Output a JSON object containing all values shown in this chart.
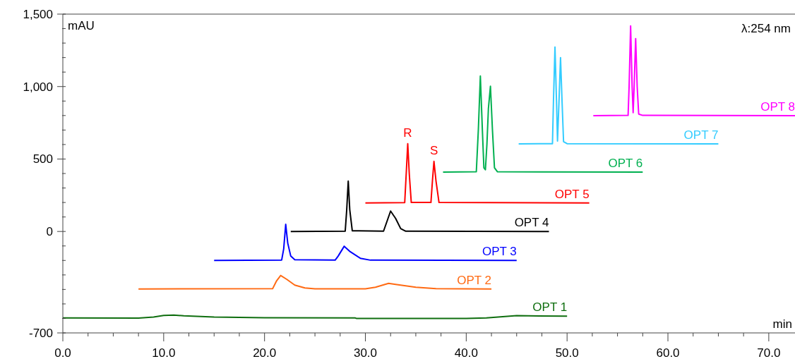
{
  "chart_data": {
    "type": "line",
    "ylabel": "mAU",
    "xlabel": "min",
    "annotations": [
      "λ:254 nm",
      {
        "text": "R",
        "x": 34.2,
        "y": 606
      },
      {
        "text": "S",
        "x": 36.8,
        "y": 484
      }
    ],
    "xlim": [
      0,
      72.6
    ],
    "xticks": [
      {
        "value": 0,
        "label": "0.0"
      },
      {
        "value": 2.5,
        "label": null
      },
      {
        "value": 5,
        "label": null
      },
      {
        "value": 7.5,
        "label": null
      },
      {
        "value": 10,
        "label": "10.0"
      },
      {
        "value": 12.5,
        "label": null
      },
      {
        "value": 15,
        "label": null
      },
      {
        "value": 17.5,
        "label": null
      },
      {
        "value": 20,
        "label": "20.0"
      },
      {
        "value": 22.5,
        "label": null
      },
      {
        "value": 25,
        "label": null
      },
      {
        "value": 27.5,
        "label": null
      },
      {
        "value": 30,
        "label": "30.0"
      },
      {
        "value": 32.5,
        "label": null
      },
      {
        "value": 35,
        "label": null
      },
      {
        "value": 37.5,
        "label": null
      },
      {
        "value": 40,
        "label": "40.0"
      },
      {
        "value": 42.5,
        "label": null
      },
      {
        "value": 45,
        "label": null
      },
      {
        "value": 47.5,
        "label": null
      },
      {
        "value": 50,
        "label": "50.0"
      },
      {
        "value": 52.5,
        "label": null
      },
      {
        "value": 55,
        "label": null
      },
      {
        "value": 57.5,
        "label": null
      },
      {
        "value": 60,
        "label": "60.0"
      },
      {
        "value": 62.5,
        "label": null
      },
      {
        "value": 65,
        "label": null
      },
      {
        "value": 67.5,
        "label": null
      },
      {
        "value": 70,
        "label": "70.0"
      }
    ],
    "ylim": [
      -700,
      1500
    ],
    "yticks": [
      -700,
      {
        "value": -600,
        "label": null
      },
      {
        "value": -500,
        "label": null
      },
      {
        "value": -400,
        "label": null
      },
      {
        "value": -300,
        "label": null
      },
      {
        "value": -200,
        "label": null
      },
      {
        "value": -100,
        "label": null
      },
      0,
      {
        "value": 100,
        "label": null
      },
      {
        "value": 200,
        "label": null
      },
      {
        "value": 300,
        "label": null
      },
      {
        "value": 400,
        "label": null
      },
      500,
      {
        "value": 600,
        "label": null
      },
      {
        "value": 700,
        "label": null
      },
      {
        "value": 800,
        "label": null
      },
      {
        "value": 900,
        "label": null
      },
      {
        "value": 1000,
        "label": "1,000"
      },
      {
        "value": 1100,
        "label": null
      },
      {
        "value": 1200,
        "label": null
      },
      {
        "value": 1300,
        "label": null
      },
      {
        "value": 1400,
        "label": null
      },
      {
        "value": 1500,
        "label": "1,500"
      }
    ],
    "series": [
      {
        "name": "OPT 1",
        "color": "#0f6e0f",
        "x": [
          0,
          7.5,
          9,
          10,
          11,
          12,
          15,
          20,
          29,
          29.1,
          35,
          40,
          42,
          45,
          50
        ],
        "values": [
          -596,
          -598,
          -590,
          -580,
          -577,
          -582,
          -590,
          -595,
          -597,
          -600,
          -600,
          -600,
          -597,
          -581,
          -585
        ]
      },
      {
        "name": "OPT 2",
        "color": "#ff6a13",
        "x": [
          7.5,
          20.8,
          21.2,
          21.6,
          22.2,
          23,
          24,
          25,
          30,
          31,
          32.3,
          33,
          35,
          37,
          42.5
        ],
        "values": [
          -397,
          -395,
          -340,
          -304,
          -330,
          -370,
          -390,
          -396,
          -396,
          -385,
          -358,
          -365,
          -385,
          -395,
          -397
        ]
      },
      {
        "name": "OPT 3",
        "color": "#0000ff",
        "x": [
          15,
          21.7,
          21.9,
          22.1,
          22.3,
          22.6,
          23,
          27,
          27.3,
          27.9,
          28.5,
          29.5,
          30.5,
          45
        ],
        "values": [
          -200,
          -197,
          -120,
          49,
          -80,
          -170,
          -195,
          -198,
          -170,
          -102,
          -140,
          -185,
          -198,
          -200
        ]
      },
      {
        "name": "OPT 4",
        "color": "#000000",
        "x": [
          22.6,
          28,
          28.15,
          28.3,
          28.45,
          28.7,
          31.8,
          32.5,
          33,
          33.5,
          34,
          48.2
        ],
        "values": [
          0,
          2,
          150,
          348,
          150,
          5,
          2,
          141,
          90,
          20,
          2,
          0
        ]
      },
      {
        "name": "OPT 5",
        "color": "#ff0000",
        "x": [
          30,
          33.9,
          34.05,
          34.2,
          34.35,
          34.55,
          36.5,
          36.65,
          36.8,
          37,
          37.3,
          52.2
        ],
        "values": [
          197,
          199,
          400,
          606,
          400,
          200,
          200,
          350,
          484,
          350,
          200,
          197
        ]
      },
      {
        "name": "OPT 6",
        "color": "#00b050",
        "x": [
          37.7,
          41,
          41.2,
          41.4,
          41.6,
          41.75,
          41.9,
          42.05,
          42.2,
          42.4,
          42.6,
          42.8,
          43.1,
          57.5
        ],
        "values": [
          410,
          412,
          700,
          1073,
          700,
          440,
          426,
          600,
          850,
          1002,
          700,
          440,
          412,
          410
        ]
      },
      {
        "name": "OPT 7",
        "color": "#33ccff",
        "x": [
          45.2,
          48.55,
          48.65,
          48.8,
          48.95,
          49.05,
          49.2,
          49.35,
          49.5,
          49.65,
          50,
          65
        ],
        "values": [
          604,
          606,
          900,
          1273,
          900,
          624,
          900,
          1200,
          900,
          620,
          606,
          604
        ]
      },
      {
        "name": "OPT 8",
        "color": "#ff00ff",
        "x": [
          52.6,
          56.05,
          56.15,
          56.3,
          56.45,
          56.55,
          56.65,
          56.8,
          56.95,
          57.1,
          57.5,
          72.6
        ],
        "values": [
          799,
          801,
          1000,
          1418,
          1000,
          820,
          1000,
          1331,
          1000,
          810,
          801,
          799
        ]
      }
    ]
  }
}
